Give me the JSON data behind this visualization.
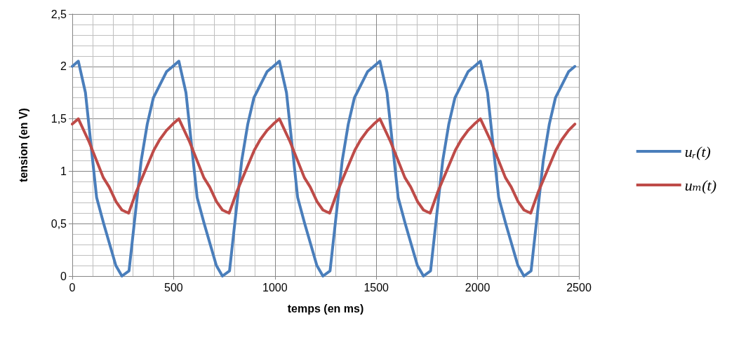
{
  "chart_data": {
    "type": "line",
    "xlabel": "temps (en ms)",
    "ylabel": "tension (en V)",
    "xlim": [
      0,
      2500
    ],
    "xticks": [
      0,
      500,
      1000,
      1500,
      2000,
      2500
    ],
    "ylim": [
      0,
      2.5
    ],
    "yticks": [
      0,
      {
        "value": 0.5,
        "label": "0,5"
      },
      1,
      {
        "value": 1.5,
        "label": "1,5"
      },
      2,
      {
        "value": 2.5,
        "label": "2,5"
      }
    ],
    "grid": true,
    "legend": "right",
    "marker": "none",
    "line_style": "solid",
    "series": [
      {
        "name": "uᵣ(t)",
        "color": "#4a7ebb",
        "x": [
          0,
          30,
          65,
          120,
          155,
          215,
          245,
          280,
          340,
          370,
          400,
          465,
          496,
          526,
          561,
          616,
          651,
          711,
          741,
          776,
          836,
          866,
          896,
          961,
          992,
          1022,
          1057,
          1112,
          1147,
          1207,
          1237,
          1272,
          1332,
          1362,
          1392,
          1457,
          1488,
          1518,
          1553,
          1608,
          1643,
          1703,
          1733,
          1768,
          1828,
          1858,
          1888,
          1953,
          1984,
          2014,
          2049,
          2104,
          2139,
          2199,
          2229,
          2264,
          2324,
          2354,
          2384,
          2449,
          2480
        ],
        "values": [
          2.0,
          2.05,
          1.75,
          0.75,
          0.5,
          0.1,
          0,
          0.05,
          1.1,
          1.45,
          1.7,
          1.95,
          2.0,
          2.05,
          1.75,
          0.75,
          0.5,
          0.1,
          0,
          0.05,
          1.1,
          1.45,
          1.7,
          1.95,
          2.0,
          2.05,
          1.75,
          0.75,
          0.5,
          0.1,
          0,
          0.05,
          1.1,
          1.45,
          1.7,
          1.95,
          2.0,
          2.05,
          1.75,
          0.75,
          0.5,
          0.1,
          0,
          0.05,
          1.1,
          1.45,
          1.7,
          1.95,
          2.0,
          2.05,
          1.75,
          0.75,
          0.5,
          0.1,
          0,
          0.05,
          1.1,
          1.45,
          1.7,
          1.95,
          2.0
        ]
      },
      {
        "name": "uₘ(t)",
        "color": "#be4b48",
        "x": [
          0,
          30,
          83,
          153,
          182,
          216,
          245,
          278,
          315,
          402,
          431,
          465,
          496,
          526,
          579,
          649,
          678,
          712,
          741,
          774,
          811,
          898,
          927,
          961,
          992,
          1022,
          1075,
          1145,
          1174,
          1208,
          1237,
          1270,
          1307,
          1394,
          1423,
          1457,
          1488,
          1518,
          1571,
          1641,
          1670,
          1704,
          1733,
          1766,
          1803,
          1890,
          1919,
          1953,
          1984,
          2014,
          2067,
          2137,
          2166,
          2200,
          2229,
          2262,
          2299,
          2386,
          2415,
          2449,
          2480
        ],
        "values": [
          1.45,
          1.5,
          1.28,
          0.94,
          0.85,
          0.71,
          0.63,
          0.6,
          0.8,
          1.2,
          1.3,
          1.39,
          1.45,
          1.5,
          1.28,
          0.94,
          0.85,
          0.71,
          0.63,
          0.6,
          0.8,
          1.2,
          1.3,
          1.39,
          1.45,
          1.5,
          1.28,
          0.94,
          0.85,
          0.71,
          0.63,
          0.6,
          0.8,
          1.2,
          1.3,
          1.39,
          1.45,
          1.5,
          1.28,
          0.94,
          0.85,
          0.71,
          0.63,
          0.6,
          0.8,
          1.2,
          1.3,
          1.39,
          1.45,
          1.5,
          1.28,
          0.94,
          0.85,
          0.71,
          0.63,
          0.6,
          0.8,
          1.2,
          1.3,
          1.39,
          1.45
        ]
      }
    ]
  }
}
